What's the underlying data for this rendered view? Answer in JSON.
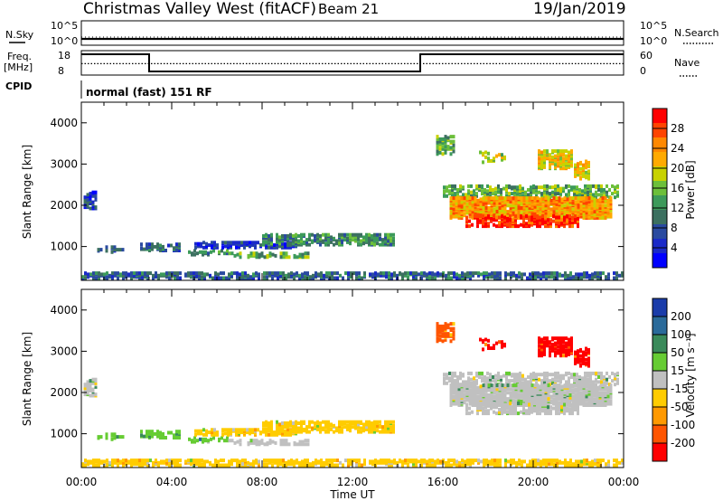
{
  "header": {
    "title": "Christmas Valley West (fitACF)",
    "beam": "Beam 21",
    "date": "19/Jan/2019"
  },
  "top_panels": {
    "nsky_label": "N.Sky",
    "nsky_ticks": [
      "10^5",
      "10^0"
    ],
    "nsearch_label": "N.Search",
    "nsearch_ticks": [
      "10^5",
      "10^0"
    ],
    "freq_label_line1": "Freq.",
    "freq_label_line2": "[MHz]",
    "freq_ticks": [
      "18",
      "8"
    ],
    "nave_label": "Nave",
    "nave_ticks": [
      "60",
      "0"
    ],
    "cpid_label": "CPID",
    "cpid_text": "normal (fast) 151 RF"
  },
  "colorbars": {
    "power": {
      "label": "Power [dB]",
      "ticks": [
        "28",
        "24",
        "20",
        "16",
        "12",
        "8",
        "4"
      ],
      "colors": [
        "#ff0000",
        "#ff4400",
        "#ff8800",
        "#ffaa00",
        "#c8d200",
        "#6cbf3a",
        "#3c9a5a",
        "#3c7060",
        "#2a4aa0",
        "#1a2ac8",
        "#0000ff"
      ]
    },
    "velocity": {
      "label": "Velocity [m s⁻¹]",
      "ticks": [
        "200",
        "100",
        "50",
        "15",
        "-15",
        "-50",
        "-100",
        "-200"
      ],
      "colors": [
        "#1a3caa",
        "#2a6a9a",
        "#3a8a5a",
        "#66cc33",
        "#c0c0c0",
        "#ffcc00",
        "#ff9900",
        "#ff5500",
        "#ff0000"
      ]
    }
  },
  "chart_data": [
    {
      "type": "line",
      "panel": "N.Sky / N.Search",
      "ylabel": "N.Sky",
      "y2label": "N.Search",
      "scale": "log",
      "x": [
        "00:00",
        "04:00",
        "08:00",
        "12:00",
        "16:00",
        "20:00",
        "00:00"
      ],
      "series": [
        {
          "name": "N.Sky",
          "values": [
            30,
            30,
            30,
            30,
            30,
            30,
            30
          ]
        },
        {
          "name": "N.Search",
          "values": [
            20,
            20,
            20,
            20,
            20,
            20,
            20
          ]
        }
      ]
    },
    {
      "type": "line",
      "panel": "Freq / Nave",
      "ylabel": "Freq. [MHz]",
      "y2label": "Nave",
      "ylim": [
        8,
        18
      ],
      "y2lim": [
        0,
        60
      ],
      "series": [
        {
          "name": "Freq.",
          "points": [
            [
              0,
              16.5
            ],
            [
              3,
              16.5
            ],
            [
              3,
              9.5
            ],
            [
              15,
              9.5
            ],
            [
              15,
              16.5
            ],
            [
              24,
              16.5
            ]
          ]
        },
        {
          "name": "Nave",
          "points": [
            [
              0,
              28
            ],
            [
              24,
              28
            ]
          ]
        }
      ]
    },
    {
      "type": "heatmap",
      "panel": "Power",
      "xlabel": "",
      "ylabel": "Slant Range [km]",
      "xlim": [
        0,
        24
      ],
      "ylim": [
        180,
        4500
      ],
      "x_ticks": [
        "00:00",
        "04:00",
        "08:00",
        "12:00",
        "16:00",
        "20:00",
        "00:00"
      ],
      "y_ticks": [
        1000,
        2000,
        3000,
        4000
      ],
      "zlabel": "Power [dB]",
      "zlim": [
        0,
        30
      ]
    },
    {
      "type": "heatmap",
      "panel": "Velocity",
      "xlabel": "Time UT",
      "ylabel": "Slant Range [km]",
      "xlim": [
        0,
        24
      ],
      "ylim": [
        180,
        4500
      ],
      "x_ticks": [
        "00:00",
        "04:00",
        "08:00",
        "12:00",
        "16:00",
        "20:00",
        "00:00"
      ],
      "y_ticks": [
        1000,
        2000,
        3000,
        4000
      ],
      "zlabel": "Velocity [m s⁻¹]",
      "zlim": [
        -250,
        250
      ]
    }
  ]
}
